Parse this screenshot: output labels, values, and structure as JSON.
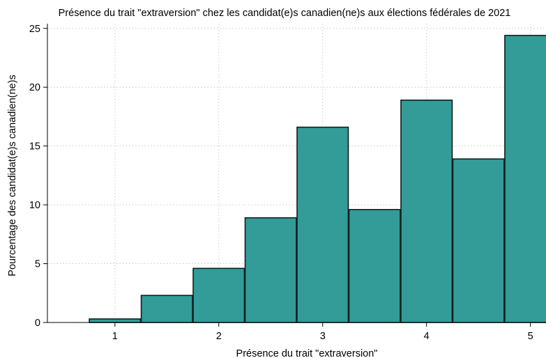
{
  "chart_data": {
    "type": "bar",
    "title": "Présence du trait \"extraversion\" chez les candidat(e)s canadien(ne)s aux élections fédérales de 2021",
    "xlabel": "Présence du trait \"extraversion\"",
    "ylabel": "Pourcentage des candidat(e)s canadien(ne)s",
    "bins": [
      {
        "x_start": 0.75,
        "x_end": 1.25,
        "value": 0.3
      },
      {
        "x_start": 1.25,
        "x_end": 1.75,
        "value": 2.3
      },
      {
        "x_start": 1.75,
        "x_end": 2.25,
        "value": 4.6
      },
      {
        "x_start": 2.25,
        "x_end": 2.75,
        "value": 8.9
      },
      {
        "x_start": 2.75,
        "x_end": 3.25,
        "value": 16.6
      },
      {
        "x_start": 3.25,
        "x_end": 3.75,
        "value": 9.6
      },
      {
        "x_start": 3.75,
        "x_end": 4.25,
        "value": 18.9
      },
      {
        "x_start": 4.25,
        "x_end": 4.75,
        "value": 13.9
      },
      {
        "x_start": 4.75,
        "x_end": 5.25,
        "value": 24.4
      }
    ],
    "x_ticks": [
      {
        "value": 1,
        "label": "1"
      },
      {
        "value": 2,
        "label": "2"
      },
      {
        "value": 3,
        "label": "3"
      },
      {
        "value": 4,
        "label": "4"
      },
      {
        "value": 5,
        "label": "5"
      }
    ],
    "y_ticks": [
      {
        "value": 0,
        "label": "0"
      },
      {
        "value": 5,
        "label": "5"
      },
      {
        "value": 10,
        "label": "10"
      },
      {
        "value": 15,
        "label": "15"
      },
      {
        "value": 20,
        "label": "20"
      },
      {
        "value": 25,
        "label": "25"
      }
    ],
    "xlim": [
      0.35,
      5.15
    ],
    "ylim": [
      0,
      25.4
    ],
    "grid": true,
    "bar_color": "#339b98",
    "bar_edge_color": "#0d1f1f"
  }
}
